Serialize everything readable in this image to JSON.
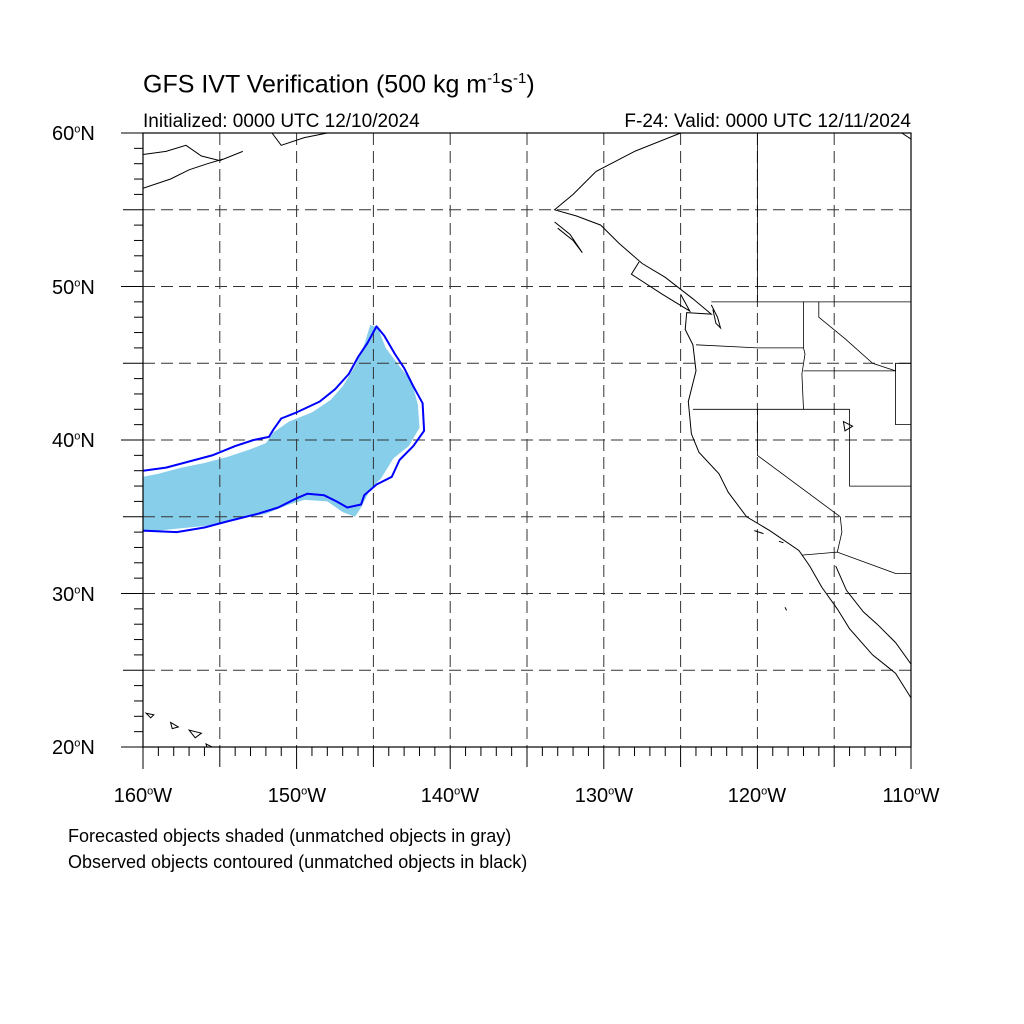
{
  "title": {
    "main": "GFS IVT Verification (500 kg m",
    "exp1": "-1",
    "mid": "s",
    "exp2": "-1",
    "end": ")"
  },
  "subtitle_left": "Initialized: 0000 UTC 12/10/2024",
  "subtitle_right": "F-24: Valid: 0000 UTC 12/11/2024",
  "lat_labels": [
    {
      "num": "60",
      "deg": "o",
      "hem": "N"
    },
    {
      "num": "50",
      "deg": "o",
      "hem": "N"
    },
    {
      "num": "40",
      "deg": "o",
      "hem": "N"
    },
    {
      "num": "30",
      "deg": "o",
      "hem": "N"
    },
    {
      "num": "20",
      "deg": "o",
      "hem": "N"
    }
  ],
  "lon_labels": [
    {
      "num": "160",
      "deg": "o",
      "hem": "W"
    },
    {
      "num": "150",
      "deg": "o",
      "hem": "W"
    },
    {
      "num": "140",
      "deg": "o",
      "hem": "W"
    },
    {
      "num": "130",
      "deg": "o",
      "hem": "W"
    },
    {
      "num": "120",
      "deg": "o",
      "hem": "W"
    },
    {
      "num": "110",
      "deg": "o",
      "hem": "W"
    }
  ],
  "captions": [
    "Forecasted objects shaded (unmatched objects in gray)",
    "Observed objects contoured (unmatched objects in black)"
  ],
  "map": {
    "lon_range": [
      -160,
      -110
    ],
    "lat_range": [
      20,
      60
    ],
    "grid_lon_step": 5,
    "grid_lat_step": 5,
    "forecast_fill_color": "#87ceeb",
    "observed_contour_color": "#0000ff",
    "coastline_color": "#000000",
    "forecast_object": [
      [
        -160,
        37.6
      ],
      [
        -159,
        37.8
      ],
      [
        -157.5,
        38.2
      ],
      [
        -156,
        38.5
      ],
      [
        -154.5,
        38.9
      ],
      [
        -153,
        39.4
      ],
      [
        -152,
        39.8
      ],
      [
        -151.5,
        40.5
      ],
      [
        -150.5,
        41.2
      ],
      [
        -149,
        41.8
      ],
      [
        -147.8,
        42.6
      ],
      [
        -147,
        43.5
      ],
      [
        -146.2,
        44.8
      ],
      [
        -145.6,
        46.2
      ],
      [
        -145.2,
        47.5
      ],
      [
        -144.7,
        47.3
      ],
      [
        -144.2,
        46.0
      ],
      [
        -143.3,
        44.8
      ],
      [
        -142.5,
        43.8
      ],
      [
        -142.1,
        42.3
      ],
      [
        -142.0,
        40.8
      ],
      [
        -142.7,
        39.6
      ],
      [
        -143.7,
        38.8
      ],
      [
        -144.5,
        37.5
      ],
      [
        -145.2,
        36.8
      ],
      [
        -145.8,
        35.6
      ],
      [
        -146.2,
        35.0
      ],
      [
        -147.0,
        35.3
      ],
      [
        -148.0,
        36.0
      ],
      [
        -149.5,
        36.1
      ],
      [
        -150.5,
        35.8
      ],
      [
        -152.0,
        35.2
      ],
      [
        -154.0,
        34.8
      ],
      [
        -156.0,
        34.4
      ],
      [
        -158.0,
        34.2
      ],
      [
        -160,
        34.0
      ]
    ],
    "observed_object": [
      [
        -160,
        38.0
      ],
      [
        -158.5,
        38.2
      ],
      [
        -157,
        38.6
      ],
      [
        -155.5,
        39.0
      ],
      [
        -154,
        39.6
      ],
      [
        -152.8,
        40.0
      ],
      [
        -151.8,
        40.2
      ],
      [
        -151.5,
        40.7
      ],
      [
        -151.0,
        41.4
      ],
      [
        -150.0,
        41.8
      ],
      [
        -148.5,
        42.5
      ],
      [
        -147.5,
        43.3
      ],
      [
        -146.6,
        44.3
      ],
      [
        -146.0,
        45.4
      ],
      [
        -145.4,
        46.3
      ],
      [
        -144.8,
        47.4
      ],
      [
        -144.3,
        46.8
      ],
      [
        -143.6,
        45.6
      ],
      [
        -143.0,
        44.7
      ],
      [
        -142.4,
        43.5
      ],
      [
        -141.8,
        42.4
      ],
      [
        -141.7,
        40.6
      ],
      [
        -142.4,
        39.6
      ],
      [
        -143.3,
        38.7
      ],
      [
        -143.8,
        37.6
      ],
      [
        -144.8,
        37.1
      ],
      [
        -145.6,
        36.4
      ],
      [
        -145.8,
        35.8
      ],
      [
        -146.7,
        35.6
      ],
      [
        -147.4,
        36.0
      ],
      [
        -148.2,
        36.4
      ],
      [
        -149.3,
        36.5
      ],
      [
        -150.0,
        36.2
      ],
      [
        -151.2,
        35.6
      ],
      [
        -152.5,
        35.2
      ],
      [
        -154.5,
        34.7
      ],
      [
        -156.0,
        34.3
      ],
      [
        -157.8,
        34.0
      ],
      [
        -160,
        34.1
      ]
    ],
    "coastlines": [
      [
        [
          -125.0,
          60.0
        ],
        [
          -128,
          58.8
        ],
        [
          -130.5,
          57.5
        ],
        [
          -132.0,
          56.0
        ],
        [
          -133.2,
          55.0
        ],
        [
          -131.8,
          54.6
        ],
        [
          -130.2,
          54.0
        ],
        [
          -129.0,
          52.8
        ],
        [
          -127.5,
          51.5
        ],
        [
          -126.0,
          50.6
        ],
        [
          -124.2,
          49.2
        ],
        [
          -123.0,
          48.2
        ],
        [
          -124.6,
          48.3
        ],
        [
          -124.7,
          47.2
        ],
        [
          -124.2,
          46.2
        ],
        [
          -124.0,
          44.5
        ],
        [
          -124.5,
          42.5
        ],
        [
          -124.3,
          40.4
        ],
        [
          -123.8,
          39.2
        ],
        [
          -122.5,
          37.8
        ],
        [
          -121.9,
          36.6
        ],
        [
          -120.7,
          35.0
        ],
        [
          -119.2,
          34.1
        ],
        [
          -117.3,
          32.8
        ],
        [
          -116.6,
          31.8
        ],
        [
          -115.8,
          30.4
        ],
        [
          -114.8,
          29.0
        ],
        [
          -114.0,
          27.7
        ],
        [
          -112.5,
          26.0
        ],
        [
          -111.0,
          24.8
        ],
        [
          -110.0,
          23.2
        ]
      ],
      [
        [
          -114.9,
          31.8
        ],
        [
          -114.2,
          30.2
        ],
        [
          -113.1,
          28.8
        ],
        [
          -112.2,
          28.0
        ],
        [
          -111.0,
          26.8
        ],
        [
          -110.0,
          25.4
        ]
      ],
      [
        [
          -148,
          60.0
        ],
        [
          -149.5,
          59.7
        ],
        [
          -151,
          59.2
        ],
        [
          -151.6,
          60.0
        ]
      ],
      [
        [
          -160,
          58.6
        ],
        [
          -158.5,
          58.8
        ],
        [
          -157.2,
          59.2
        ],
        [
          -156.2,
          58.5
        ],
        [
          -155.0,
          58.2
        ],
        [
          -153.5,
          58.8
        ]
      ],
      [
        [
          -160,
          56.4
        ],
        [
          -158.2,
          57.0
        ],
        [
          -157.0,
          57.6
        ],
        [
          -155.8,
          58.0
        ],
        [
          -154.8,
          58.3
        ]
      ],
      [
        [
          -127.7,
          51.6
        ],
        [
          -128.2,
          50.8
        ],
        [
          -126.2,
          49.5
        ],
        [
          -124.4,
          48.4
        ],
        [
          -125.0,
          49.5
        ]
      ],
      [
        [
          -133.2,
          54.2
        ],
        [
          -132.2,
          53.4
        ],
        [
          -131.4,
          52.2
        ],
        [
          -132.0,
          53.0
        ],
        [
          -133.0,
          53.8
        ]
      ],
      [
        [
          -110.6,
          60.0
        ],
        [
          -110.0,
          59.6
        ]
      ]
    ],
    "islands": [
      [
        [
          -159.8,
          22.2
        ],
        [
          -159.3,
          22.1
        ],
        [
          -159.5,
          21.9
        ]
      ],
      [
        [
          -158.2,
          21.6
        ],
        [
          -157.7,
          21.3
        ],
        [
          -158.1,
          21.2
        ]
      ],
      [
        [
          -157.0,
          21.1
        ],
        [
          -156.2,
          20.9
        ],
        [
          -156.6,
          20.6
        ]
      ],
      [
        [
          -155.9,
          20.2
        ],
        [
          -154.9,
          19.7
        ],
        [
          -155.6,
          19.2
        ]
      ],
      [
        [
          -114.4,
          41.2
        ],
        [
          -113.8,
          40.9
        ],
        [
          -114.3,
          40.6
        ]
      ],
      [
        [
          -120.2,
          34.1
        ],
        [
          -119.6,
          33.9
        ]
      ],
      [
        [
          -118.6,
          33.4
        ],
        [
          -118.3,
          33.3
        ]
      ],
      [
        [
          -118.2,
          29.1
        ],
        [
          -118.1,
          28.9
        ]
      ]
    ],
    "borders": [
      [
        [
          -123.0,
          49.0
        ],
        [
          -110.0,
          49.0
        ]
      ],
      [
        [
          -124.0,
          46.2
        ],
        [
          -120.0,
          46.0
        ],
        [
          -117.0,
          46.0
        ],
        [
          -116.9,
          45.6
        ],
        [
          -117.1,
          44.3
        ],
        [
          -117.0,
          42.0
        ]
      ],
      [
        [
          -124.2,
          42.0
        ],
        [
          -117.0,
          42.0
        ],
        [
          -114.0,
          42.0
        ]
      ],
      [
        [
          -117.0,
          49.0
        ],
        [
          -117.0,
          46.0
        ]
      ],
      [
        [
          -116.0,
          49.0
        ],
        [
          -116.0,
          48.0
        ],
        [
          -114.3,
          46.6
        ],
        [
          -112.5,
          45.0
        ],
        [
          -111.0,
          44.5
        ]
      ],
      [
        [
          -117.0,
          44.5
        ],
        [
          -111.0,
          44.5
        ],
        [
          -111.0,
          45.0
        ],
        [
          -110.0,
          45.0
        ]
      ],
      [
        [
          -120.0,
          42.0
        ],
        [
          -120.0,
          39.0
        ],
        [
          -114.6,
          35.0
        ]
      ],
      [
        [
          -114.0,
          42.0
        ],
        [
          -114.0,
          37.0
        ],
        [
          -110.0,
          37.0
        ]
      ],
      [
        [
          -114.6,
          35.0
        ],
        [
          -114.5,
          34.0
        ],
        [
          -114.8,
          32.7
        ]
      ],
      [
        [
          -117.1,
          32.5
        ],
        [
          -114.8,
          32.7
        ],
        [
          -111.0,
          31.3
        ],
        [
          -110.0,
          31.3
        ]
      ],
      [
        [
          -111.0,
          45.0
        ],
        [
          -111.0,
          41.0
        ],
        [
          -110.0,
          41.0
        ]
      ],
      [
        [
          -120.0,
          60.0
        ],
        [
          -120.0,
          49.0
        ]
      ]
    ],
    "lakes": [
      [
        [
          -123.0,
          48.8
        ],
        [
          -122.6,
          48.0
        ],
        [
          -122.4,
          47.3
        ],
        [
          -122.7,
          47.6
        ],
        [
          -122.9,
          48.5
        ]
      ]
    ]
  }
}
